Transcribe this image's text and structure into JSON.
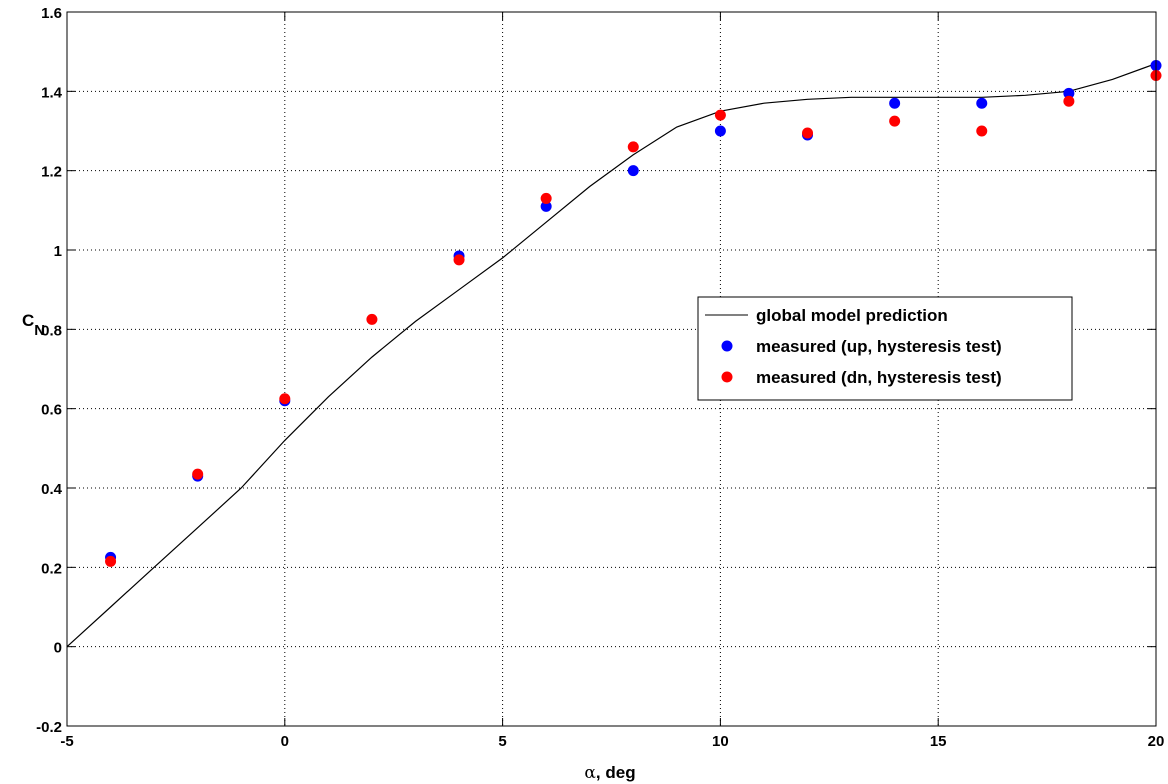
{
  "chart_data": {
    "type": "scatter",
    "xlabel_symbol": "α",
    "xlabel_text": ", deg",
    "ylabel_main": "C",
    "ylabel_sub": "N",
    "xlim": [
      -5,
      20
    ],
    "ylim": [
      -0.2,
      1.6
    ],
    "xticks": [
      -5,
      0,
      5,
      10,
      15,
      20
    ],
    "xtick_labels": [
      "-5",
      "0",
      "5",
      "10",
      "15",
      "20"
    ],
    "yticks": [
      -0.2,
      0,
      0.2,
      0.4,
      0.6,
      0.8,
      1,
      1.2,
      1.4,
      1.6
    ],
    "ytick_labels": [
      "-0.2",
      "0",
      "0.2",
      "0.4",
      "0.6",
      "0.8",
      "1",
      "1.2",
      "1.4",
      "1.6"
    ],
    "grid": true,
    "legend_position": "center-right",
    "series": [
      {
        "name": "global model prediction",
        "kind": "line",
        "color": "#000000",
        "x": [
          -5,
          -4,
          -3,
          -2,
          -1,
          0,
          1,
          2,
          3,
          4,
          5,
          6,
          7,
          8,
          9,
          10,
          11,
          12,
          13,
          14,
          15,
          16,
          17,
          18,
          19,
          20
        ],
        "y": [
          0.0,
          0.1,
          0.2,
          0.3,
          0.4,
          0.52,
          0.63,
          0.73,
          0.82,
          0.9,
          0.98,
          1.07,
          1.16,
          1.24,
          1.31,
          1.35,
          1.37,
          1.38,
          1.385,
          1.385,
          1.385,
          1.385,
          1.39,
          1.4,
          1.43,
          1.47
        ]
      },
      {
        "name": "measured (up, hysteresis test)",
        "kind": "scatter",
        "color": "#0000ff",
        "x": [
          -4,
          -2,
          0,
          4,
          6,
          8,
          10,
          12,
          14,
          16,
          18,
          20
        ],
        "y": [
          0.225,
          0.43,
          0.62,
          0.985,
          1.11,
          1.2,
          1.3,
          1.29,
          1.37,
          1.37,
          1.395,
          1.465
        ]
      },
      {
        "name": "measured (dn, hysteresis test)",
        "kind": "scatter",
        "color": "#ff0000",
        "x": [
          -4,
          -2,
          0,
          2,
          4,
          6,
          8,
          10,
          12,
          14,
          16,
          18,
          20
        ],
        "y": [
          0.215,
          0.435,
          0.625,
          0.825,
          0.975,
          1.13,
          1.26,
          1.34,
          1.295,
          1.325,
          1.3,
          1.375,
          1.44
        ]
      }
    ]
  }
}
